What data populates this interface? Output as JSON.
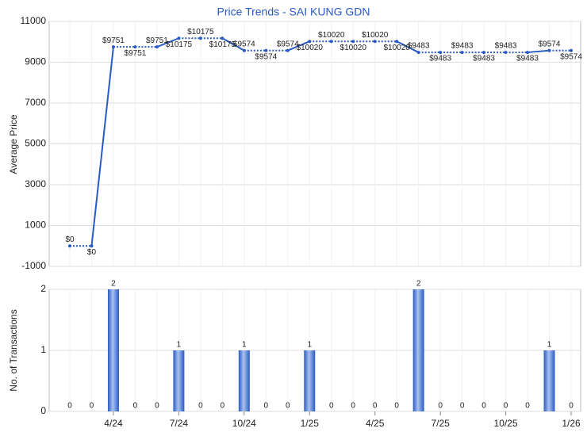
{
  "chart_data": [
    {
      "type": "line",
      "title": "Price Trends - SAI KUNG GDN",
      "y_label": "Average Price",
      "color": "#2a5bc4",
      "values": [
        0,
        0,
        9751,
        9751,
        9751,
        10175,
        10175,
        10175,
        9574,
        9574,
        9574,
        10020,
        10020,
        10020,
        10020,
        10020,
        9483,
        9483,
        9483,
        9483,
        9483,
        9483,
        9574,
        9574
      ],
      "value_labels": [
        "$0",
        "$0",
        "$9751",
        "$9751",
        "$9751",
        "$10175",
        "$10175",
        "$10175",
        "$9574",
        "$9574",
        "$9574",
        "$10020",
        "$10020",
        "$10020",
        "$10020",
        "$10020",
        "$9483",
        "$9483",
        "$9483",
        "$9483",
        "$9483",
        "$9483",
        "$9574",
        "$9574"
      ],
      "ylim": [
        -1000,
        11000
      ],
      "yticks": [
        -1000,
        1000,
        3000,
        5000,
        7000,
        9000,
        11000
      ],
      "grid": true
    },
    {
      "type": "bar",
      "y_label": "No. of Transactions",
      "color": "#2a5bc4",
      "categories": [
        null,
        null,
        "4/24",
        null,
        null,
        "7/24",
        null,
        null,
        "10/24",
        null,
        null,
        "1/25",
        null,
        null,
        "4/25",
        null,
        null,
        "7/25",
        null,
        null,
        "10/25",
        null,
        null,
        "1/26"
      ],
      "values": [
        0,
        0,
        2,
        0,
        0,
        1,
        0,
        0,
        1,
        0,
        0,
        1,
        0,
        0,
        0,
        0,
        2,
        0,
        0,
        0,
        0,
        0,
        1,
        0
      ],
      "ylim": [
        0,
        2
      ],
      "yticks": [
        0,
        1,
        2
      ],
      "grid": true
    }
  ]
}
